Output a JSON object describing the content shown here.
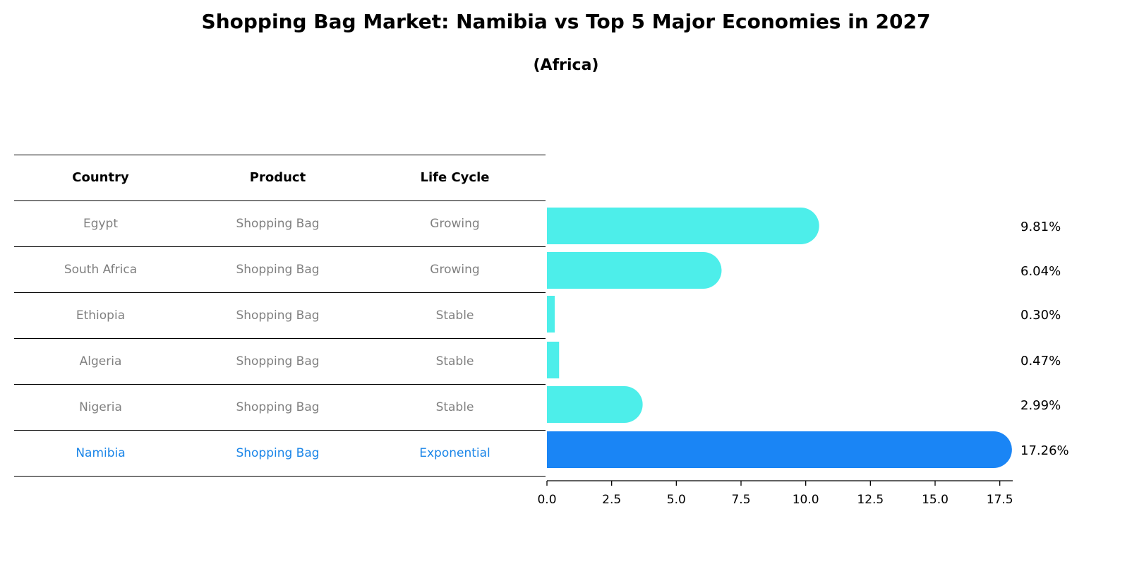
{
  "chart_data": {
    "type": "bar",
    "orientation": "horizontal",
    "title": "Shopping Bag Market: Namibia vs Top 5 Major Economies in 2027",
    "subtitle": "(Africa)",
    "table": {
      "headers": [
        "Country",
        "Product",
        "Life Cycle"
      ],
      "rows": [
        {
          "country": "Egypt",
          "product": "Shopping Bag",
          "life_cycle": "Growing"
        },
        {
          "country": "South Africa",
          "product": "Shopping Bag",
          "life_cycle": "Growing"
        },
        {
          "country": "Ethiopia",
          "product": "Shopping Bag",
          "life_cycle": "Stable"
        },
        {
          "country": "Algeria",
          "product": "Shopping Bag",
          "life_cycle": "Stable"
        },
        {
          "country": "Nigeria",
          "product": "Shopping Bag",
          "life_cycle": "Stable"
        },
        {
          "country": "Namibia",
          "product": "Shopping Bag",
          "life_cycle": "Exponential"
        }
      ]
    },
    "categories": [
      "Egypt",
      "South Africa",
      "Ethiopia",
      "Algeria",
      "Nigeria",
      "Namibia"
    ],
    "values": [
      9.81,
      6.04,
      0.3,
      0.47,
      2.99,
      17.26
    ],
    "value_labels": [
      "9.81%",
      "6.04%",
      "0.30%",
      "0.47%",
      "2.99%",
      "17.26%"
    ],
    "highlight": "Namibia",
    "xlim": [
      0,
      18
    ],
    "xticks": [
      0.0,
      2.5,
      5.0,
      7.5,
      10.0,
      12.5,
      15.0,
      17.5
    ],
    "xtick_labels": [
      "0.0",
      "2.5",
      "5.0",
      "7.5",
      "10.0",
      "12.5",
      "15.0",
      "17.5"
    ],
    "xlabel": "",
    "ylabel": "",
    "colors": {
      "bar": "#4deeea",
      "highlight": "#1a85f5",
      "highlight_text": "#1a85e8",
      "muted_text": "#808080"
    }
  }
}
